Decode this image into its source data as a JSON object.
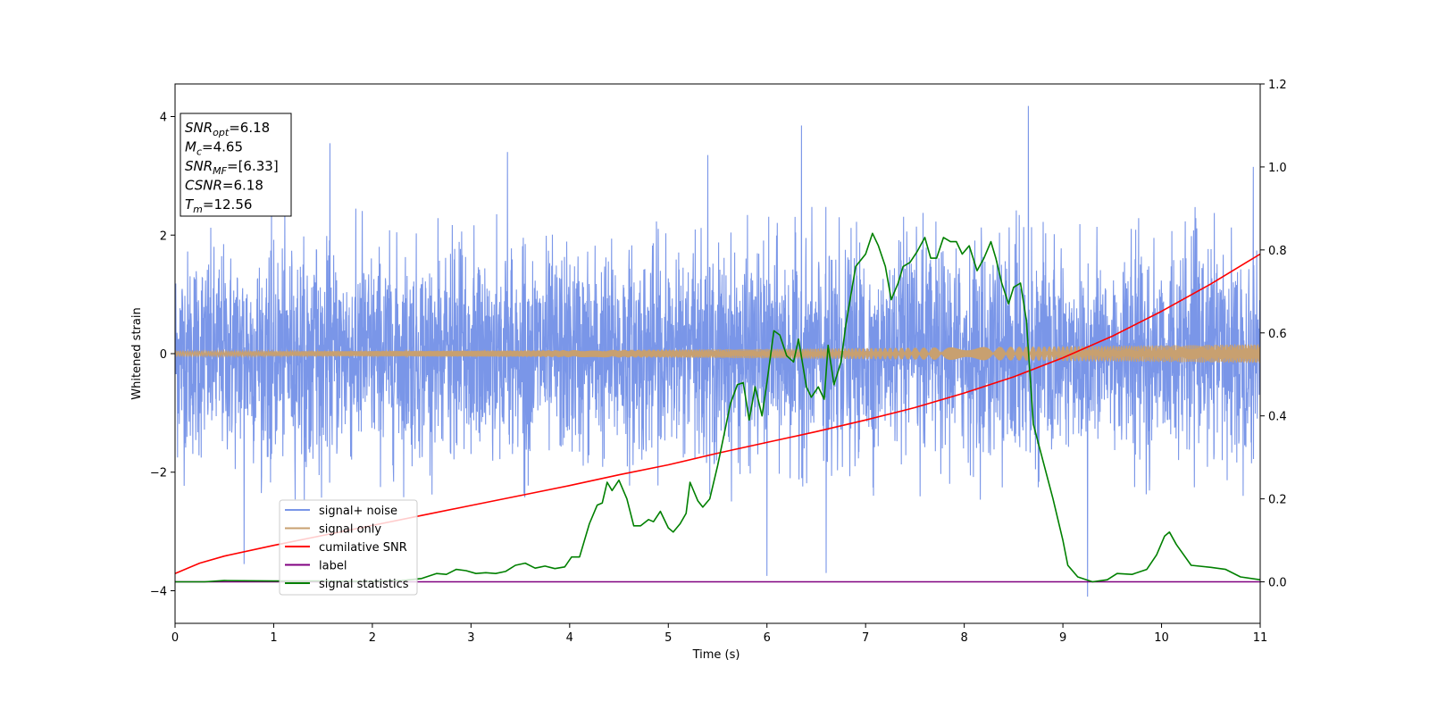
{
  "chart_data": {
    "type": "line",
    "xlabel": "Time (s)",
    "ylabel": "Whitened strain",
    "xlim": [
      0,
      11
    ],
    "ylim": [
      -4.55,
      4.55
    ],
    "y2lim": [
      -0.1,
      1.2
    ],
    "x_ticks": [
      "0",
      "1",
      "2",
      "3",
      "4",
      "5",
      "6",
      "7",
      "8",
      "9",
      "10",
      "11"
    ],
    "y_ticks": [
      "−4",
      "−2",
      "0",
      "2",
      "4"
    ],
    "y2_ticks": [
      "0.0",
      "0.2",
      "0.4",
      "0.6",
      "0.8",
      "1.0",
      "1.2"
    ],
    "grid": false,
    "legend_placement": "lower-left",
    "annotation": {
      "lines": [
        {
          "main": "SNR",
          "sub": "opt",
          "rest": "=6.18"
        },
        {
          "main": "M",
          "sub": "c",
          "rest": "=4.65"
        },
        {
          "main": "SNR",
          "sub": "MF",
          "rest": "=[6.33]"
        },
        {
          "main": "CSNR",
          "sub": "",
          "rest": "=6.18"
        },
        {
          "main": "T",
          "sub": "m",
          "rest": "=12.56"
        }
      ]
    },
    "series": [
      {
        "name": "signal+ noise",
        "axis": "left",
        "color": "#7a96e8",
        "kind": "noise",
        "envelope": 2.5,
        "spikes": [
          [
            0.7,
            -3.55
          ],
          [
            1.57,
            3.55
          ],
          [
            3.37,
            3.4
          ],
          [
            5.4,
            3.35
          ],
          [
            6.0,
            -3.75
          ],
          [
            6.35,
            3.85
          ],
          [
            6.6,
            -3.7
          ],
          [
            8.65,
            4.18
          ],
          [
            9.25,
            -4.1
          ],
          [
            10.93,
            3.15
          ]
        ]
      },
      {
        "name": "signal only",
        "axis": "left",
        "color": "#c8a070",
        "kind": "chirp",
        "amplitude_start": 0.04,
        "amplitude_end": 0.16
      },
      {
        "name": "cumilative SNR",
        "axis": "right",
        "color": "#ff0000",
        "x": [
          0,
          0.25,
          0.5,
          1,
          1.5,
          2,
          2.5,
          3,
          3.5,
          4,
          4.5,
          5,
          5.5,
          6,
          6.5,
          7,
          7.5,
          8,
          8.5,
          9,
          9.5,
          10,
          10.5,
          11
        ],
        "values": [
          0.02,
          0.045,
          0.062,
          0.088,
          0.112,
          0.136,
          0.16,
          0.184,
          0.208,
          0.232,
          0.258,
          0.282,
          0.31,
          0.336,
          0.362,
          0.39,
          0.42,
          0.455,
          0.494,
          0.54,
          0.592,
          0.652,
          0.718,
          0.79
        ]
      },
      {
        "name": "label",
        "axis": "right",
        "color": "#800080",
        "x": [
          0,
          11
        ],
        "values": [
          0.0,
          0.0
        ]
      },
      {
        "name": "signal statistics",
        "axis": "right",
        "color": "#008000",
        "x": [
          0,
          0.3,
          0.5,
          1,
          1.5,
          2,
          2.3,
          2.5,
          2.65,
          2.75,
          2.85,
          2.95,
          3.05,
          3.15,
          3.25,
          3.35,
          3.45,
          3.55,
          3.65,
          3.75,
          3.85,
          3.95,
          4.02,
          4.1,
          4.2,
          4.28,
          4.33,
          4.38,
          4.43,
          4.5,
          4.58,
          4.65,
          4.72,
          4.8,
          4.85,
          4.92,
          5.0,
          5.05,
          5.12,
          5.18,
          5.22,
          5.3,
          5.35,
          5.42,
          5.5,
          5.57,
          5.63,
          5.7,
          5.76,
          5.82,
          5.88,
          5.95,
          6.0,
          6.07,
          6.13,
          6.2,
          6.27,
          6.32,
          6.4,
          6.45,
          6.52,
          6.58,
          6.62,
          6.68,
          6.75,
          6.8,
          6.9,
          7.0,
          7.07,
          7.13,
          7.2,
          7.26,
          7.33,
          7.38,
          7.45,
          7.52,
          7.6,
          7.66,
          7.72,
          7.79,
          7.86,
          7.92,
          7.98,
          8.05,
          8.13,
          8.2,
          8.27,
          8.32,
          8.38,
          8.45,
          8.5,
          8.57,
          8.63,
          8.7,
          8.8,
          8.9,
          9.0,
          9.05,
          9.15,
          9.3,
          9.45,
          9.55,
          9.7,
          9.85,
          9.95,
          10.03,
          10.08,
          10.15,
          10.3,
          10.5,
          10.65,
          10.8,
          11.0
        ],
        "values": [
          0.0,
          0.0,
          0.003,
          0.002,
          0.002,
          0.001,
          0.003,
          0.008,
          0.02,
          0.018,
          0.03,
          0.027,
          0.02,
          0.022,
          0.02,
          0.025,
          0.04,
          0.045,
          0.033,
          0.038,
          0.032,
          0.036,
          0.06,
          0.06,
          0.14,
          0.185,
          0.19,
          0.24,
          0.22,
          0.245,
          0.2,
          0.135,
          0.135,
          0.15,
          0.145,
          0.17,
          0.13,
          0.12,
          0.14,
          0.165,
          0.24,
          0.195,
          0.18,
          0.2,
          0.28,
          0.36,
          0.43,
          0.475,
          0.48,
          0.39,
          0.47,
          0.4,
          0.48,
          0.605,
          0.595,
          0.545,
          0.53,
          0.585,
          0.47,
          0.445,
          0.47,
          0.44,
          0.57,
          0.475,
          0.53,
          0.62,
          0.76,
          0.79,
          0.84,
          0.81,
          0.76,
          0.68,
          0.72,
          0.76,
          0.77,
          0.795,
          0.83,
          0.78,
          0.78,
          0.83,
          0.82,
          0.82,
          0.79,
          0.81,
          0.75,
          0.78,
          0.82,
          0.78,
          0.72,
          0.67,
          0.71,
          0.72,
          0.63,
          0.38,
          0.29,
          0.2,
          0.1,
          0.04,
          0.012,
          0.0,
          0.005,
          0.02,
          0.018,
          0.03,
          0.065,
          0.11,
          0.12,
          0.09,
          0.04,
          0.035,
          0.03,
          0.012,
          0.005
        ]
      }
    ]
  }
}
